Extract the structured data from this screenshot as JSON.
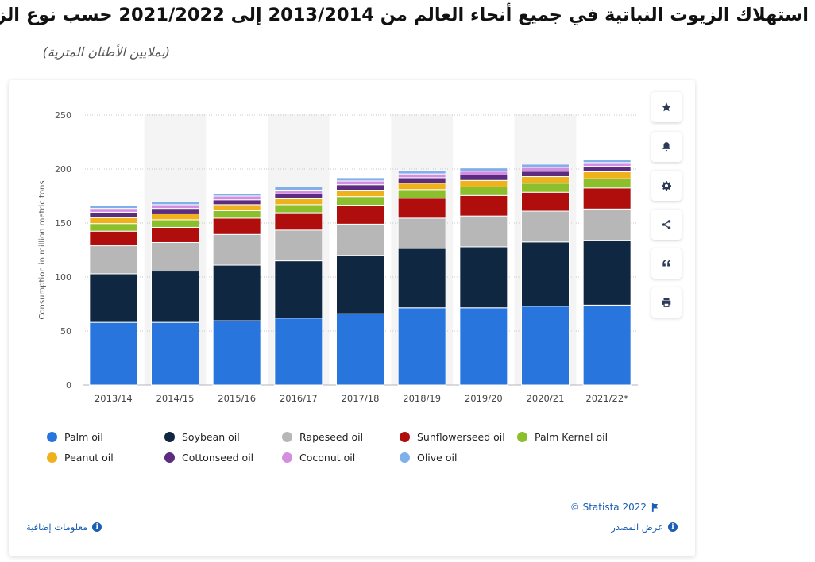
{
  "header": {
    "title": "استهلاك الزيوت النباتية في جميع أنحاء العالم من 2013/2014 إلى 2021/2022 حسب نوع الزيت",
    "subtitle": "(بملايين الأطنان المترية)"
  },
  "toolbar": {
    "buttons": [
      {
        "name": "star-icon"
      },
      {
        "name": "bell-icon"
      },
      {
        "name": "gear-icon"
      },
      {
        "name": "share-icon"
      },
      {
        "name": "quote-icon"
      },
      {
        "name": "print-icon"
      }
    ]
  },
  "footer": {
    "copyright": "© Statista 2022",
    "additional_info": "معلومات إضافية",
    "show_source": "عرض المصدر"
  },
  "colors": {
    "Palm oil": "#2876dd",
    "Soybean oil": "#0f2741",
    "Rapeseed oil": "#b7b7b7",
    "Sunflowerseed oil": "#b00d0d",
    "Palm Kernel oil": "#8cbf2c",
    "Peanut oil": "#f0b21c",
    "Cottonseed oil": "#5b2c7f",
    "Coconut oil": "#d48ee0",
    "Olive oil": "#7fb0ea"
  },
  "chart_data": {
    "type": "bar",
    "stacked": true,
    "ylabel": "Consumption in million metric tons",
    "xlabel": "",
    "ylim": [
      0,
      250
    ],
    "yticks": [
      0,
      50,
      100,
      150,
      200,
      250
    ],
    "categories": [
      "2013/14",
      "2014/15",
      "2015/16",
      "2016/17",
      "2017/18",
      "2018/19",
      "2019/20",
      "2020/21",
      "2021/22*"
    ],
    "series": [
      {
        "name": "Palm oil",
        "values": [
          58,
          58,
          59.5,
          62,
          66,
          71.5,
          71.5,
          73,
          74
        ]
      },
      {
        "name": "Soybean oil",
        "values": [
          45,
          47.5,
          51.5,
          53,
          54,
          55,
          56.5,
          59.5,
          60
        ]
      },
      {
        "name": "Rapeseed oil",
        "values": [
          26,
          26.5,
          28.5,
          28.5,
          29,
          28,
          28.5,
          28.5,
          29
        ]
      },
      {
        "name": "Sunflowerseed oil",
        "values": [
          13.5,
          14,
          15,
          16,
          17.5,
          18.5,
          19,
          17.5,
          19.5
        ]
      },
      {
        "name": "Palm Kernel oil",
        "values": [
          7,
          7,
          7,
          7.5,
          8,
          8,
          8,
          8.5,
          8.5
        ]
      },
      {
        "name": "Peanut oil",
        "values": [
          5.5,
          5.5,
          5.5,
          5.5,
          6,
          6,
          6,
          6,
          6.5
        ]
      },
      {
        "name": "Cottonseed oil",
        "values": [
          5,
          5,
          4.5,
          4.5,
          5,
          5,
          5,
          5,
          5
        ]
      },
      {
        "name": "Coconut oil",
        "values": [
          3.5,
          3.5,
          3.5,
          3.5,
          3.5,
          3.5,
          3.5,
          3.5,
          3.5
        ]
      },
      {
        "name": "Olive oil",
        "values": [
          2.5,
          2.5,
          2.5,
          3,
          3,
          3,
          3,
          3,
          3
        ]
      }
    ]
  }
}
